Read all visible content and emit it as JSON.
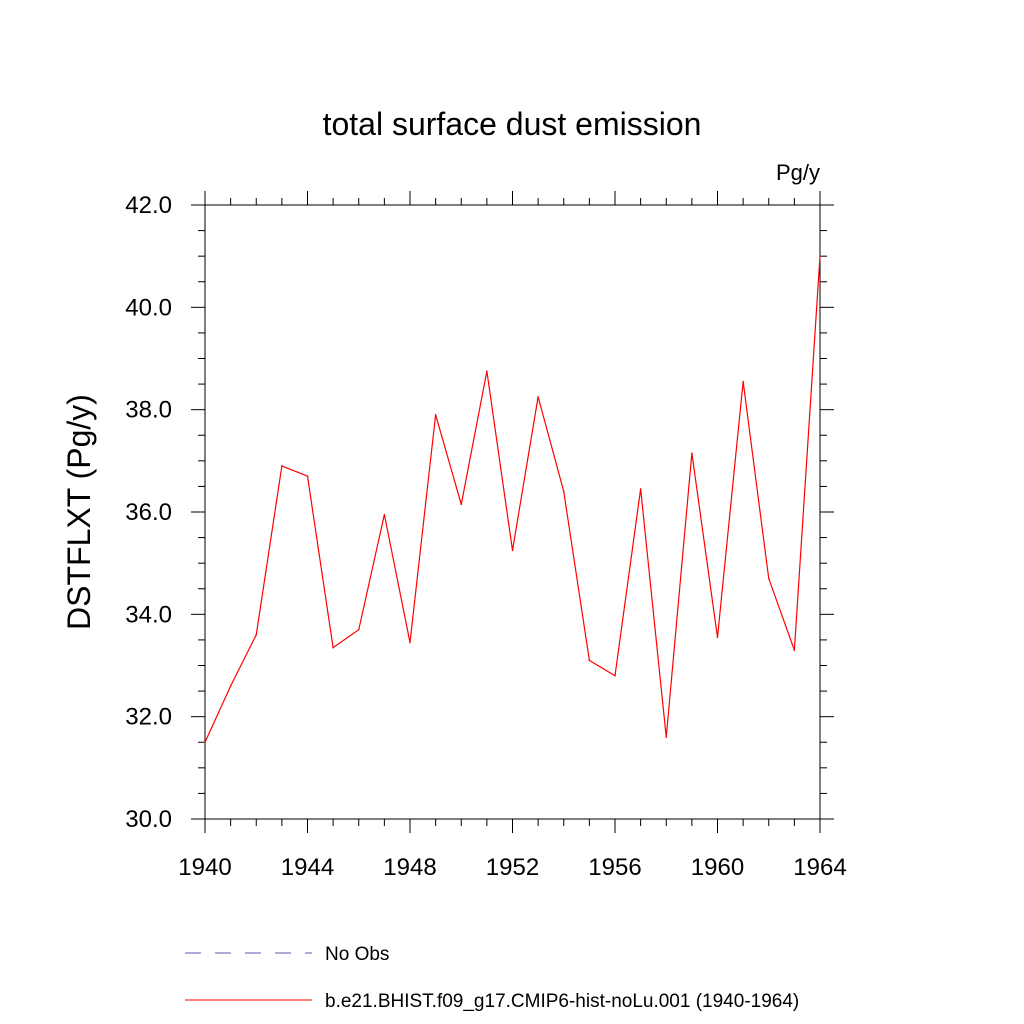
{
  "chart_data": {
    "type": "line",
    "title": "total surface dust emission",
    "units_label": "Pg/y",
    "ylabel": "DSTFLXT  (Pg/y)",
    "xlabel": "",
    "xlim": [
      1940,
      1964
    ],
    "ylim": [
      30.0,
      42.0
    ],
    "x_ticks": [
      1940,
      1944,
      1948,
      1952,
      1956,
      1960,
      1964
    ],
    "x_tick_labels": [
      "1940",
      "1944",
      "1948",
      "1952",
      "1956",
      "1960",
      "1964"
    ],
    "y_ticks": [
      30.0,
      32.0,
      34.0,
      36.0,
      38.0,
      40.0,
      42.0
    ],
    "y_tick_labels": [
      "30.0",
      "32.0",
      "34.0",
      "36.0",
      "38.0",
      "40.0",
      "42.0"
    ],
    "grid": false,
    "legend_position": "bottom",
    "series": [
      {
        "name": "b.e21.BHIST.f09_g17.CMIP6-hist-noLu.001 (1940-1964)",
        "color": "#ff0000",
        "style": "solid",
        "x": [
          1940,
          1941,
          1942,
          1943,
          1944,
          1945,
          1946,
          1947,
          1948,
          1949,
          1950,
          1951,
          1952,
          1953,
          1954,
          1955,
          1956,
          1957,
          1958,
          1959,
          1960,
          1961,
          1962,
          1963,
          1964
        ],
        "values": [
          31.5,
          32.6,
          33.6,
          36.9,
          36.7,
          33.35,
          33.7,
          35.95,
          33.45,
          37.9,
          36.15,
          38.75,
          35.25,
          38.25,
          36.4,
          33.1,
          32.8,
          36.45,
          31.6,
          37.15,
          33.55,
          38.55,
          34.7,
          33.3,
          41.0
        ]
      }
    ],
    "legend": [
      {
        "label": "No Obs",
        "color": "#5a5ab0",
        "style": "dashed"
      },
      {
        "label": "b.e21.BHIST.f09_g17.CMIP6-hist-noLu.001 (1940-1964)",
        "color": "#ff0000",
        "style": "solid"
      }
    ]
  }
}
